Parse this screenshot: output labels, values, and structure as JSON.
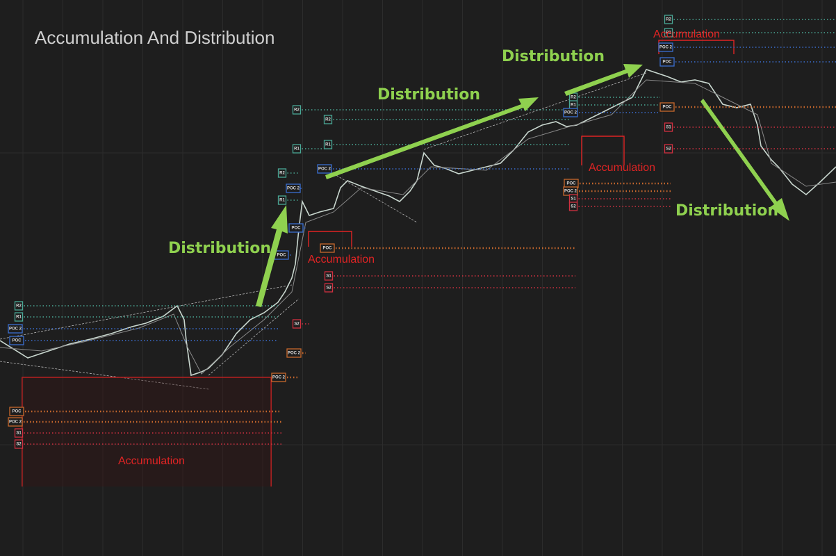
{
  "title": "Accumulation And Distribution",
  "annotations": [
    "Distribution",
    "Distribution",
    "Distribution",
    "Distribution",
    "Accumulation",
    "Accumulation",
    "Accumulation",
    "Accumulation"
  ],
  "level_tags": [
    "R2",
    "R1",
    "POC 2",
    "POC",
    "POC",
    "POC 2",
    "S1",
    "S2",
    "R2",
    "POC 2",
    "R1",
    "POC",
    "POC",
    "POC 2",
    "POC 2",
    "S2",
    "R2",
    "R2",
    "R1",
    "R1",
    "POC 2",
    "POC",
    "S1",
    "S2",
    "R2",
    "R1",
    "POC 2",
    "POC",
    "POC 2",
    "S1",
    "S2",
    "R2",
    "R1",
    "POC 2",
    "POC",
    "POC",
    "S1",
    "S2"
  ]
}
